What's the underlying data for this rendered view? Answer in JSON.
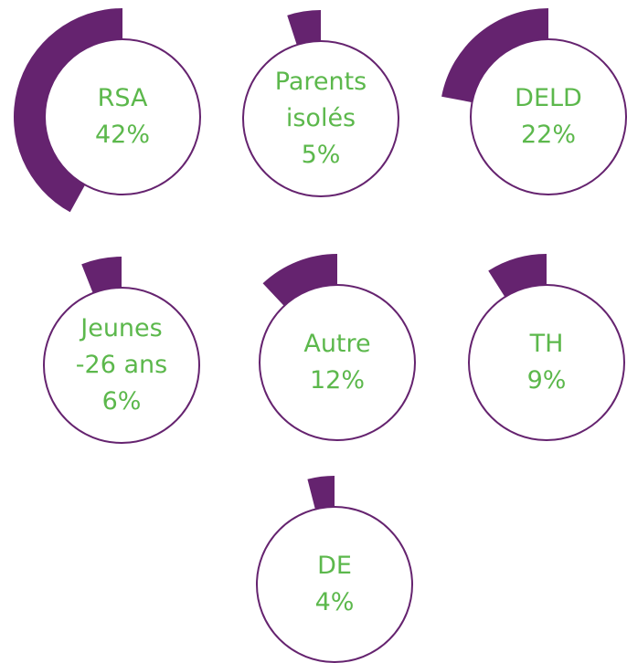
{
  "chart_data": {
    "type": "gauge",
    "categories": [
      "RSA",
      "Parents isolés",
      "DELD",
      "Jeunes -26 ans",
      "Autre",
      "TH",
      "DE"
    ],
    "values": [
      42,
      5,
      22,
      6,
      12,
      9,
      4
    ],
    "value_labels": [
      "42%",
      "5%",
      "22%",
      "6%",
      "12%",
      "9%",
      "4%"
    ],
    "color": "#65236f"
  }
}
